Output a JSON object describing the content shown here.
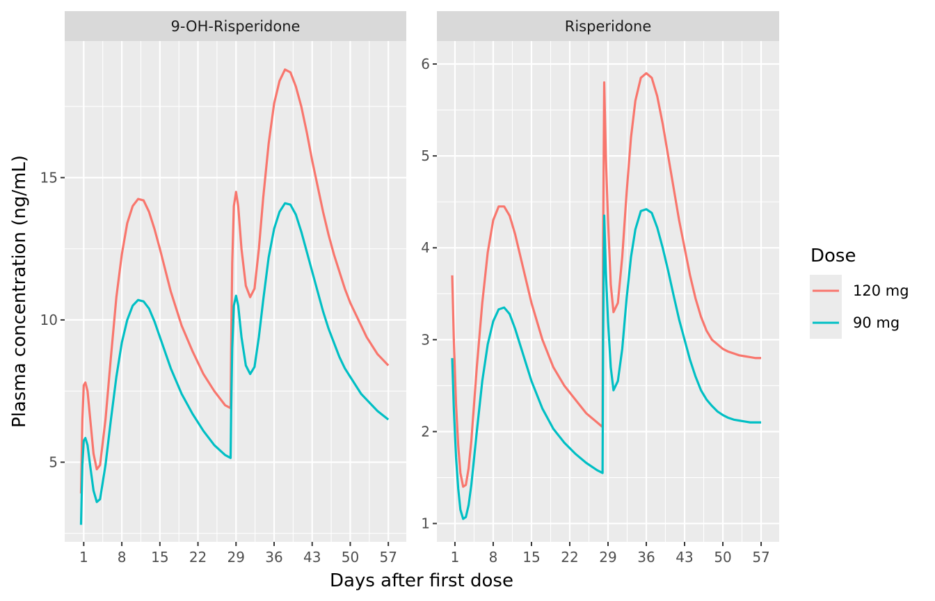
{
  "chart_data": [
    {
      "type": "line",
      "facet": "9-OH-Risperidone",
      "x_ticks": [
        1,
        8,
        15,
        22,
        29,
        36,
        43,
        50,
        57
      ],
      "y_ticks": [
        5,
        10,
        15
      ],
      "xlim": [
        -2.5,
        60.3
      ],
      "ylim": [
        2.2,
        19.8
      ],
      "series": [
        {
          "name": "120 mg",
          "color": "#F8766D",
          "x": [
            0.5,
            0.75,
            1,
            1.3,
            1.7,
            2.2,
            2.8,
            3.4,
            4,
            5,
            6,
            7,
            8,
            9,
            10,
            11,
            12,
            13,
            14,
            15,
            17,
            19,
            21,
            23,
            25,
            27,
            28,
            28.1,
            28.3,
            28.6,
            29,
            29.4,
            30,
            30.8,
            31.6,
            32.4,
            33.2,
            34,
            35,
            36,
            37,
            38,
            39,
            40,
            41,
            42,
            43,
            44,
            45,
            46,
            47,
            48,
            49,
            50,
            51,
            52,
            53,
            54,
            55,
            56,
            57
          ],
          "y": [
            3.9,
            6.5,
            7.7,
            7.8,
            7.5,
            6.5,
            5.3,
            4.75,
            4.9,
            6.5,
            8.7,
            10.8,
            12.3,
            13.4,
            14.0,
            14.25,
            14.2,
            13.8,
            13.2,
            12.5,
            11.0,
            9.8,
            8.9,
            8.1,
            7.5,
            7.0,
            6.9,
            9.0,
            12.0,
            14.0,
            14.5,
            14.0,
            12.5,
            11.2,
            10.8,
            11.1,
            12.5,
            14.3,
            16.2,
            17.6,
            18.4,
            18.8,
            18.7,
            18.2,
            17.5,
            16.6,
            15.6,
            14.7,
            13.8,
            13.0,
            12.3,
            11.7,
            11.1,
            10.6,
            10.2,
            9.8,
            9.4,
            9.1,
            8.8,
            8.6,
            8.4
          ]
        },
        {
          "name": "90 mg",
          "color": "#00BFC4",
          "x": [
            0.5,
            0.75,
            1,
            1.3,
            1.7,
            2.2,
            2.8,
            3.4,
            4,
            5,
            6,
            7,
            8,
            9,
            10,
            11,
            12,
            13,
            14,
            15,
            17,
            19,
            21,
            23,
            25,
            27,
            28,
            28.1,
            28.3,
            28.6,
            29,
            29.4,
            30,
            30.8,
            31.6,
            32.4,
            33.2,
            34,
            35,
            36,
            37,
            38,
            39,
            40,
            41,
            42,
            43,
            44,
            45,
            46,
            47,
            48,
            49,
            50,
            51,
            52,
            53,
            54,
            55,
            56,
            57
          ],
          "y": [
            2.8,
            4.9,
            5.75,
            5.85,
            5.6,
            4.85,
            4.0,
            3.6,
            3.7,
            4.9,
            6.5,
            8.0,
            9.2,
            10.0,
            10.5,
            10.7,
            10.65,
            10.4,
            9.95,
            9.4,
            8.3,
            7.4,
            6.7,
            6.1,
            5.6,
            5.25,
            5.15,
            6.8,
            9.0,
            10.5,
            10.85,
            10.5,
            9.4,
            8.4,
            8.1,
            8.35,
            9.4,
            10.7,
            12.2,
            13.2,
            13.8,
            14.1,
            14.05,
            13.7,
            13.1,
            12.4,
            11.7,
            11.0,
            10.3,
            9.7,
            9.2,
            8.7,
            8.3,
            8.0,
            7.7,
            7.4,
            7.2,
            7.0,
            6.8,
            6.65,
            6.5
          ]
        }
      ]
    },
    {
      "type": "line",
      "facet": "Risperidone",
      "x_ticks": [
        1,
        8,
        15,
        22,
        29,
        36,
        43,
        50,
        57
      ],
      "y_ticks": [
        1,
        2,
        3,
        4,
        5,
        6
      ],
      "xlim": [
        -2.3,
        60.3
      ],
      "ylim": [
        0.8,
        6.25
      ],
      "series": [
        {
          "name": "120 mg",
          "color": "#F8766D",
          "x": [
            0.5,
            0.8,
            1.2,
            1.6,
            2,
            2.5,
            3,
            3.5,
            4,
            5,
            6,
            7,
            8,
            9,
            10,
            11,
            12,
            13,
            14,
            15,
            17,
            19,
            21,
            23,
            25,
            27,
            28,
            28.1,
            28.3,
            28.6,
            29,
            29.5,
            30,
            30.8,
            31.6,
            32.4,
            33.2,
            34,
            35,
            36,
            37,
            38,
            39,
            40,
            41,
            42,
            43,
            44,
            45,
            46,
            47,
            48,
            49,
            50,
            51,
            52,
            53,
            54,
            55,
            56,
            57
          ],
          "y": [
            3.7,
            3.0,
            2.3,
            1.85,
            1.55,
            1.4,
            1.42,
            1.6,
            1.9,
            2.7,
            3.4,
            3.95,
            4.3,
            4.45,
            4.45,
            4.35,
            4.15,
            3.9,
            3.65,
            3.4,
            3.0,
            2.7,
            2.5,
            2.35,
            2.2,
            2.1,
            2.05,
            4.0,
            5.8,
            5.0,
            4.3,
            3.6,
            3.3,
            3.4,
            3.9,
            4.6,
            5.2,
            5.6,
            5.85,
            5.9,
            5.85,
            5.65,
            5.35,
            5.0,
            4.65,
            4.3,
            4.0,
            3.7,
            3.45,
            3.25,
            3.1,
            3.0,
            2.95,
            2.9,
            2.87,
            2.85,
            2.83,
            2.82,
            2.81,
            2.8,
            2.8
          ]
        },
        {
          "name": "90 mg",
          "color": "#00BFC4",
          "x": [
            0.5,
            0.8,
            1.2,
            1.6,
            2,
            2.5,
            3,
            3.5,
            4,
            5,
            6,
            7,
            8,
            9,
            10,
            11,
            12,
            13,
            14,
            15,
            17,
            19,
            21,
            23,
            25,
            27,
            28,
            28.1,
            28.3,
            28.6,
            29,
            29.5,
            30,
            30.8,
            31.6,
            32.4,
            33.2,
            34,
            35,
            36,
            37,
            38,
            39,
            40,
            41,
            42,
            43,
            44,
            45,
            46,
            47,
            48,
            49,
            50,
            51,
            52,
            53,
            54,
            55,
            56,
            57
          ],
          "y": [
            2.8,
            2.25,
            1.72,
            1.38,
            1.15,
            1.05,
            1.07,
            1.2,
            1.42,
            2.0,
            2.55,
            2.95,
            3.2,
            3.33,
            3.35,
            3.28,
            3.12,
            2.93,
            2.74,
            2.55,
            2.25,
            2.03,
            1.88,
            1.76,
            1.66,
            1.58,
            1.55,
            3.0,
            4.35,
            3.75,
            3.2,
            2.7,
            2.45,
            2.55,
            2.9,
            3.45,
            3.9,
            4.2,
            4.4,
            4.42,
            4.38,
            4.22,
            4.0,
            3.75,
            3.48,
            3.22,
            3.0,
            2.78,
            2.6,
            2.45,
            2.35,
            2.28,
            2.22,
            2.18,
            2.15,
            2.13,
            2.12,
            2.11,
            2.1,
            2.1,
            2.1
          ]
        }
      ]
    }
  ],
  "axes": {
    "x_title": "Days after first dose",
    "y_title": "Plasma concentration (ng/mL)"
  },
  "legend": {
    "title": "Dose",
    "placement": "right",
    "items": [
      {
        "label": "120 mg",
        "color": "#F8766D"
      },
      {
        "label": "90 mg",
        "color": "#00BFC4"
      }
    ]
  },
  "theme": {
    "panel_background": "#EBEBEB",
    "strip_background": "#D9D9D9",
    "grid_color": "#FFFFFF"
  }
}
